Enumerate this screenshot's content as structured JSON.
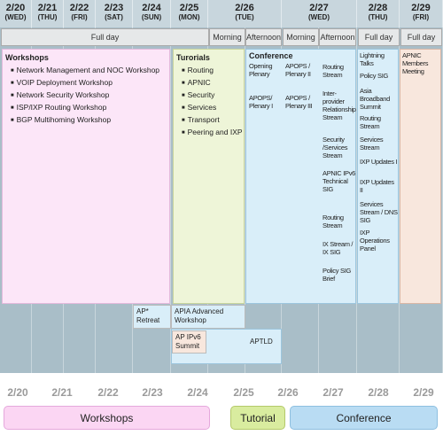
{
  "header": {
    "days": [
      {
        "date": "2/20",
        "weekday": "(WED)"
      },
      {
        "date": "2/21",
        "weekday": "(THU)"
      },
      {
        "date": "2/22",
        "weekday": "(FRI)"
      },
      {
        "date": "2/23",
        "weekday": "(SAT)"
      },
      {
        "date": "2/24",
        "weekday": "(SUN)"
      },
      {
        "date": "2/25",
        "weekday": "(MON)"
      },
      {
        "date": "2/26",
        "weekday": "(TUE)"
      },
      {
        "date": "2/27",
        "weekday": "(WED)"
      },
      {
        "date": "2/28",
        "weekday": "(THU)"
      },
      {
        "date": "2/29",
        "weekday": "(FRI)"
      }
    ],
    "sessions": [
      "Full day",
      "Morning",
      "Afternoon",
      "Morning",
      "Afternoon",
      "Full day",
      "Full day"
    ]
  },
  "workshops": {
    "title": "Workshops",
    "items": [
      "Network Management and NOC Workshop",
      "VOIP Deployment Workshop",
      "Network Security Workshop",
      "ISP/IXP Routing Workshop",
      "BGP Multihoming Workshop"
    ]
  },
  "tutorials": {
    "title": "Turorials",
    "items": [
      "Routing",
      "APNIC",
      "Security",
      "Services",
      "Transport",
      "Peering and IXP"
    ]
  },
  "conference": {
    "title": "Conference",
    "columns": [
      [
        "Opening Plenary",
        "APOPS/ Plenary I"
      ],
      [
        "APOPS / Plenary II",
        "APOPS / Plenary III"
      ],
      [
        "Routing Stream",
        "Inter-provider Relationship Stream",
        "Security /Services Stream",
        "APNIC IPv6 Technical SIG",
        "Routing Stream",
        "IX Stream / IX SIG",
        "Policy SIG Brief"
      ],
      [
        "Lightning Talks",
        "Policy SIG",
        "Asia Broadband Summit",
        "Routing Stream",
        "Services Stream",
        "IXP Updates I",
        "IXP Updates II",
        "Services Stream / DNS SIG",
        "IXP Operations Panel"
      ]
    ]
  },
  "members_meeting": "APNIC Members Meeting",
  "other_events": {
    "ap_retreat": "AP* Retreat",
    "apia": "APIA Advanced Workshop",
    "ap_ipv6": "AP IPv6 Summit",
    "aptld": "APTLD"
  },
  "legend": {
    "dates": [
      "2/20",
      "2/21",
      "2/22",
      "2/23",
      "2/24",
      "2/25",
      "2/26",
      "2/27",
      "2/28",
      "2/29"
    ],
    "items": [
      "Workshops",
      "Tutorial",
      "Conference"
    ]
  }
}
